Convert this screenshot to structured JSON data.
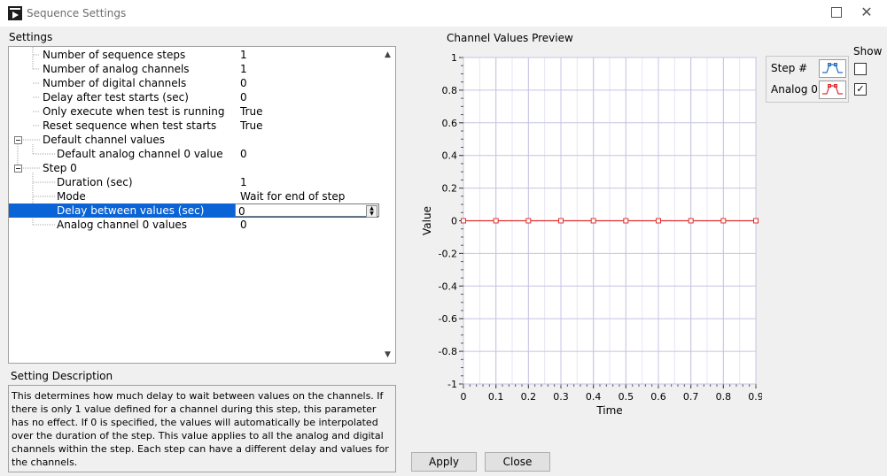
{
  "window": {
    "title": "Sequence Settings",
    "maximize_icon": "maximize-icon",
    "close_icon": "close-icon",
    "close_glyph": "✕"
  },
  "settings": {
    "label": "Settings",
    "rows": [
      {
        "name": "Number of sequence steps",
        "value": "1"
      },
      {
        "name": "Number of analog channels",
        "value": "1"
      },
      {
        "name": "Number of digital channels",
        "value": "0"
      },
      {
        "name": "Delay after test starts (sec)",
        "value": "0"
      },
      {
        "name": "Only execute when test is running",
        "value": "True"
      },
      {
        "name": "Reset sequence when test starts",
        "value": "True"
      },
      {
        "name": "Default channel values",
        "value": ""
      },
      {
        "name": "Default analog channel 0 value",
        "value": "0"
      },
      {
        "name": "Step 0",
        "value": ""
      },
      {
        "name": "Duration (sec)",
        "value": "1"
      },
      {
        "name": "Mode",
        "value": "Wait for end of step"
      },
      {
        "name": "Delay between values (sec)",
        "value": "0"
      },
      {
        "name": "Analog channel 0 values",
        "value": "0"
      }
    ],
    "selected_row": 11
  },
  "description": {
    "label": "Setting Description",
    "text": "This determines how much delay to wait between values on the channels. If there is only 1 value defined for a channel during this step, this parameter has no effect. If 0 is specified, the values will automatically be interpolated over the duration of the step. This value applies to all the analog and digital channels within the step. Each step can have a different delay and values for the channels."
  },
  "chart_data": {
    "type": "line",
    "title": "Channel Values Preview",
    "xlabel": "Time",
    "ylabel": "Value",
    "xlim": [
      0,
      0.9
    ],
    "ylim": [
      -1,
      1
    ],
    "x_ticks": [
      "0",
      "0.1",
      "0.2",
      "0.3",
      "0.4",
      "0.5",
      "0.6",
      "0.7",
      "0.8",
      "0.9"
    ],
    "y_ticks": [
      "1",
      "0.8",
      "0.6",
      "0.4",
      "0.2",
      "0",
      "-0.2",
      "-0.4",
      "-0.6",
      "-0.8",
      "-1"
    ],
    "grid": true,
    "series": [
      {
        "name": "Analog 0",
        "color": "#e03030",
        "x": [
          0,
          0.1,
          0.2,
          0.3,
          0.4,
          0.5,
          0.6,
          0.7,
          0.8,
          0.9
        ],
        "y": [
          0,
          0,
          0,
          0,
          0,
          0,
          0,
          0,
          0,
          0
        ]
      }
    ]
  },
  "legend": {
    "show_label": "Show",
    "entries": [
      {
        "name": "Step #",
        "checked": false,
        "color": "#2070c0"
      },
      {
        "name": "Analog 0",
        "checked": true,
        "color": "#e03030"
      }
    ]
  },
  "buttons": {
    "apply": "Apply",
    "close": "Close"
  }
}
